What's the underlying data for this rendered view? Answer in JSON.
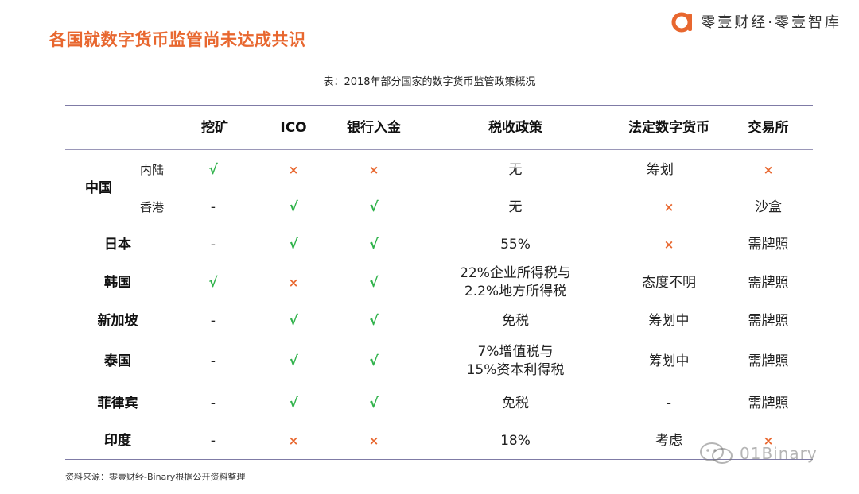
{
  "slide": {
    "title": "各国就数字货币监管尚未达成共识",
    "brand": "零壹财经·零壹智库",
    "caption": "表：2018年部分国家的数字货币监管政策概况",
    "source": "资料来源：零壹财经-Binary根据公开资料整理",
    "watermark": "01Binary"
  },
  "colors": {
    "accent": "#e8672f",
    "check": "#2fb24a",
    "cross": "#e8672f",
    "rule": "#7f7ba6"
  },
  "table": {
    "headers": [
      "挖矿",
      "ICO",
      "银行入金",
      "税收政策",
      "法定数字货币",
      "交易所"
    ],
    "rows": [
      {
        "country": "中国",
        "region": "内陆",
        "mining": "√",
        "ico": "×",
        "bank": "×",
        "tax": "无",
        "cbdc": "筹划",
        "exchange": "×"
      },
      {
        "country": "中国",
        "region": "香港",
        "mining": "-",
        "ico": "√",
        "bank": "√",
        "tax": "无",
        "cbdc": "×",
        "exchange": "沙盒"
      },
      {
        "country": "日本",
        "mining": "-",
        "ico": "√",
        "bank": "√",
        "tax": "55%",
        "cbdc": "×",
        "exchange": "需牌照"
      },
      {
        "country": "韩国",
        "mining": "√",
        "ico": "×",
        "bank": "√",
        "tax_line1": "22%企业所得税与",
        "tax_line2": "2.2%地方所得税",
        "cbdc": "态度不明",
        "exchange": "需牌照"
      },
      {
        "country": "新加坡",
        "mining": "-",
        "ico": "√",
        "bank": "√",
        "tax": "免税",
        "cbdc": "筹划中",
        "exchange": "需牌照"
      },
      {
        "country": "泰国",
        "mining": "-",
        "ico": "√",
        "bank": "√",
        "tax_line1": "7%增值税与",
        "tax_line2": "15%资本利得税",
        "cbdc": "筹划中",
        "exchange": "需牌照"
      },
      {
        "country": "菲律宾",
        "mining": "-",
        "ico": "√",
        "bank": "√",
        "tax": "免税",
        "cbdc": "-",
        "exchange": "需牌照"
      },
      {
        "country": "印度",
        "mining": "-",
        "ico": "×",
        "bank": "×",
        "tax": "18%",
        "cbdc": "考虑",
        "exchange": "×"
      }
    ]
  }
}
